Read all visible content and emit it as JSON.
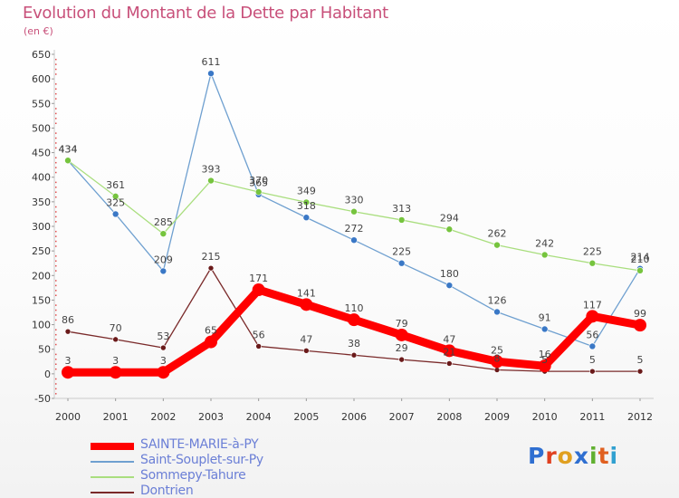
{
  "title": "Evolution du Montant de la Dette par Habitant",
  "unit": "(en €)",
  "logo": {
    "text": "Proxiti",
    "letters": [
      "P",
      "r",
      "o",
      "x",
      "i",
      "t",
      "i"
    ],
    "colors": [
      "#2f6fd1",
      "#e04020",
      "#e0a020",
      "#2f6fd1",
      "#60b030",
      "#e06020",
      "#30a0d0"
    ]
  },
  "chart_data": {
    "type": "line",
    "title": "Evolution du Montant de la Dette par Habitant",
    "ylabel": "(en €)",
    "xlabel": "",
    "x": [
      "2000",
      "2001",
      "2002",
      "2003",
      "2004",
      "2005",
      "2006",
      "2007",
      "2008",
      "2009",
      "2010",
      "2011",
      "2012"
    ],
    "ylim": [
      -50,
      650
    ],
    "yticks": [
      -50,
      0,
      50,
      100,
      150,
      200,
      250,
      300,
      350,
      400,
      450,
      500,
      550,
      600,
      650
    ],
    "grid": false,
    "legend_position": "bottom-left",
    "series": [
      {
        "name": "SAINTE-MARIE-à-PY",
        "color": "#ff0000",
        "width": 9,
        "marker": 7,
        "values": [
          3,
          3,
          3,
          65,
          171,
          141,
          110,
          79,
          47,
          25,
          16,
          117,
          99
        ],
        "labels": [
          "3",
          "3",
          "3",
          "65",
          "171",
          "141",
          "110",
          "79",
          "47",
          "25",
          "16",
          "117",
          "99"
        ]
      },
      {
        "name": "Saint-Souplet-sur-Py",
        "color": "#6fa0d0",
        "width": 1.3,
        "marker": 3.5,
        "markerColor": "#3a78c6",
        "values": [
          434,
          325,
          209,
          611,
          365,
          318,
          272,
          225,
          180,
          126,
          91,
          56,
          214
        ],
        "labels": [
          "434",
          "325",
          "209",
          "611",
          "365",
          "318",
          "272",
          "225",
          "180",
          "126",
          "91",
          "56",
          "214"
        ]
      },
      {
        "name": "Sommepy-Tahure",
        "color": "#a9de7e",
        "width": 1.3,
        "marker": 3.5,
        "markerColor": "#76c43e",
        "values": [
          434,
          361,
          285,
          393,
          370,
          349,
          330,
          313,
          294,
          262,
          242,
          225,
          210
        ],
        "labels": [
          "434",
          "361",
          "285",
          "393",
          "370",
          "349",
          "330",
          "313",
          "294",
          "262",
          "242",
          "225",
          "210"
        ]
      },
      {
        "name": "Dontrien",
        "color": "#7a2a2a",
        "width": 1.3,
        "marker": 3,
        "markerColor": "#6a1a1a",
        "values": [
          86,
          70,
          53,
          215,
          56,
          47,
          38,
          29,
          21,
          8,
          5,
          5,
          5
        ],
        "labels": [
          "86",
          "70",
          "53",
          "215",
          "56",
          "47",
          "38",
          "29",
          "21",
          "8",
          "5",
          "5",
          "5"
        ]
      }
    ]
  }
}
